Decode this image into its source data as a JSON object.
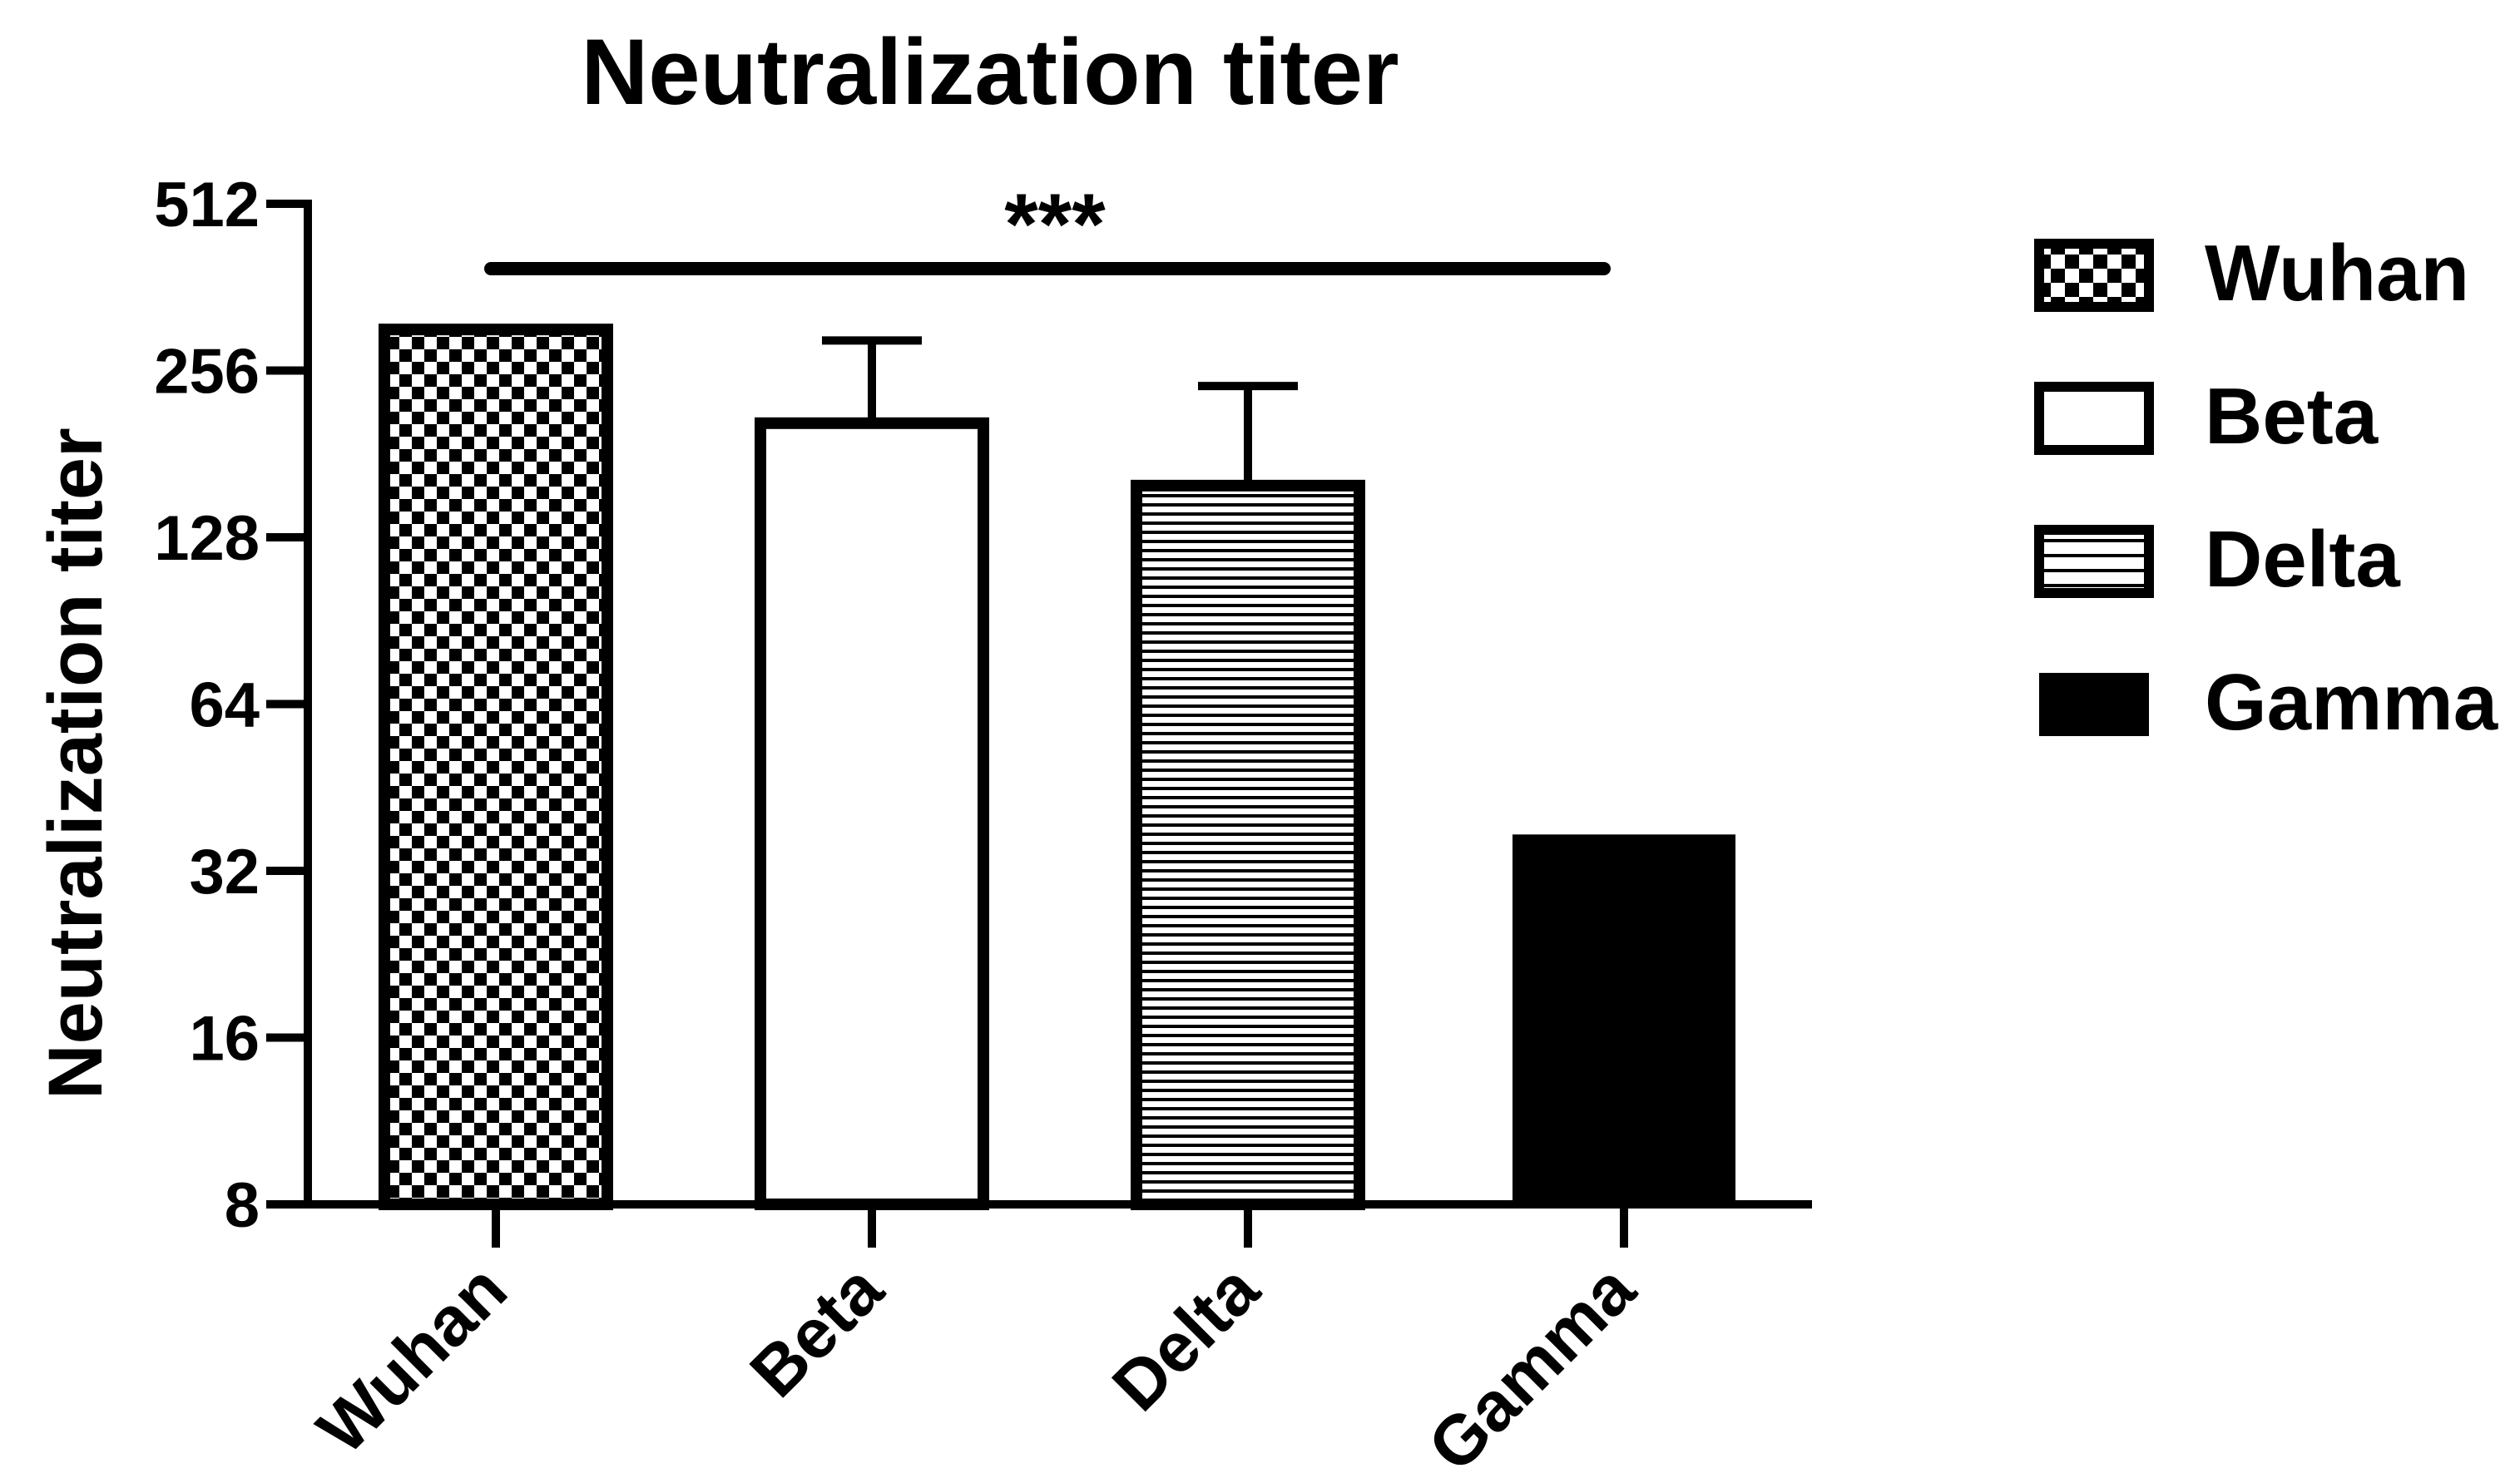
{
  "chart_data": {
    "type": "bar",
    "title": "Neutralization titer",
    "xlabel": "",
    "ylabel": "Neutralization titer",
    "yscale": "log2",
    "ylim": [
      8,
      512
    ],
    "yticks": [
      8,
      16,
      32,
      64,
      128,
      256,
      512
    ],
    "ytick_labels": [
      "8",
      "16",
      "32",
      "64",
      "128",
      "256",
      "512"
    ],
    "categories": [
      "Wuhan",
      "Beta",
      "Delta",
      "Gamma"
    ],
    "values": [
      310,
      210,
      162,
      38
    ],
    "error_upper": [
      310,
      290,
      240,
      38
    ],
    "patterns": [
      "checker",
      "open",
      "hstripes",
      "solid"
    ],
    "significance": {
      "label": "***",
      "from": "Wuhan",
      "to": "Gamma"
    },
    "legend": {
      "position": "right",
      "entries": [
        "Wuhan",
        "Beta",
        "Delta",
        "Gamma"
      ]
    },
    "grid": false
  },
  "colors": {
    "ink": "#000000",
    "background": "#ffffff"
  }
}
